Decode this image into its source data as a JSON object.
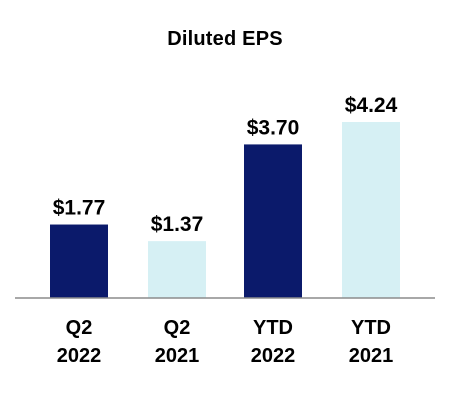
{
  "chart_data": {
    "type": "bar",
    "title": "Diluted EPS",
    "xlabel": "",
    "ylabel": "",
    "ylim": [
      0,
      4.24
    ],
    "grid": false,
    "legend": "none",
    "categories": [
      [
        "Q2",
        "2022"
      ],
      [
        "Q2",
        "2021"
      ],
      [
        "YTD",
        "2022"
      ],
      [
        "YTD",
        "2021"
      ]
    ],
    "values": [
      1.77,
      1.37,
      3.7,
      4.24
    ],
    "data_labels": [
      "$1.77",
      "$1.37",
      "$3.70",
      "$4.24"
    ],
    "colors": [
      "#0b1a6b",
      "#d6f0f4",
      "#0b1a6b",
      "#d6f0f4"
    ],
    "axis_color": "#8c8c8c"
  }
}
